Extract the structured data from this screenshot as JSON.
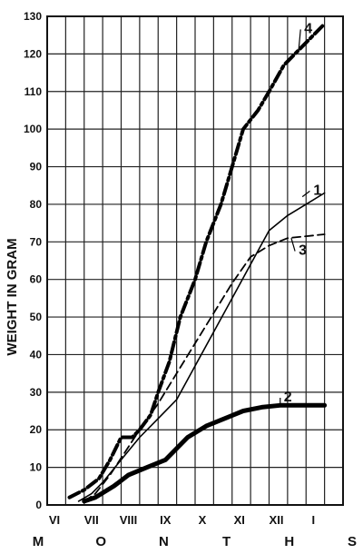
{
  "chart_data": {
    "type": "line",
    "title": "",
    "xlabel": "MONTHS",
    "ylabel": "WEIGHT IN GRAM",
    "x_categories": [
      "VI",
      "VII",
      "VIII",
      "IX",
      "X",
      "XI",
      "XII",
      "I"
    ],
    "ylim": [
      0,
      130
    ],
    "y_ticks": [
      0,
      10,
      20,
      30,
      40,
      50,
      60,
      70,
      80,
      90,
      100,
      110,
      120,
      130
    ],
    "grid": true,
    "series": [
      {
        "name": "1",
        "style": "solid-thin",
        "x": [
          0.85,
          1.2,
          1.5,
          2.0,
          2.5,
          3.0,
          3.5,
          4.0,
          4.5,
          5.0,
          5.5,
          6.0,
          6.5,
          7.0,
          7.5
        ],
        "y": [
          1,
          3,
          6,
          12,
          18,
          23,
          28,
          37,
          46,
          55,
          64,
          73,
          77,
          80,
          83
        ]
      },
      {
        "name": "2",
        "style": "solid-thick",
        "x": [
          1.0,
          1.3,
          1.8,
          2.2,
          2.7,
          3.2,
          3.8,
          4.3,
          4.8,
          5.3,
          5.8,
          6.3,
          6.7,
          7.0,
          7.5
        ],
        "y": [
          1,
          2,
          5,
          8,
          10,
          12,
          18,
          21,
          23,
          25,
          26,
          26.5,
          26.5,
          26.5,
          26.5
        ]
      },
      {
        "name": "3",
        "style": "dashed",
        "x": [
          1.0,
          1.3,
          1.7,
          2.1,
          2.5,
          3.0,
          3.5,
          4.0,
          4.5,
          5.0,
          5.5,
          6.0,
          6.5,
          7.0,
          7.5
        ],
        "y": [
          1,
          3,
          8,
          14,
          20,
          27,
          35,
          43,
          51,
          59,
          66,
          69,
          71,
          71.5,
          72
        ]
      },
      {
        "name": "4",
        "style": "dash-dot-thick",
        "x": [
          0.6,
          1.0,
          1.4,
          1.7,
          2.0,
          2.3,
          2.5,
          2.8,
          3.0,
          3.3,
          3.6,
          4.0,
          4.3,
          4.7,
          5.0,
          5.3,
          5.7,
          6.0,
          6.4,
          6.8,
          7.2,
          7.5
        ],
        "y": [
          2,
          4,
          7,
          12,
          18,
          18,
          20,
          24,
          30,
          38,
          50,
          60,
          70,
          80,
          90,
          100,
          105,
          110,
          117,
          121,
          125,
          128
        ]
      }
    ]
  }
}
